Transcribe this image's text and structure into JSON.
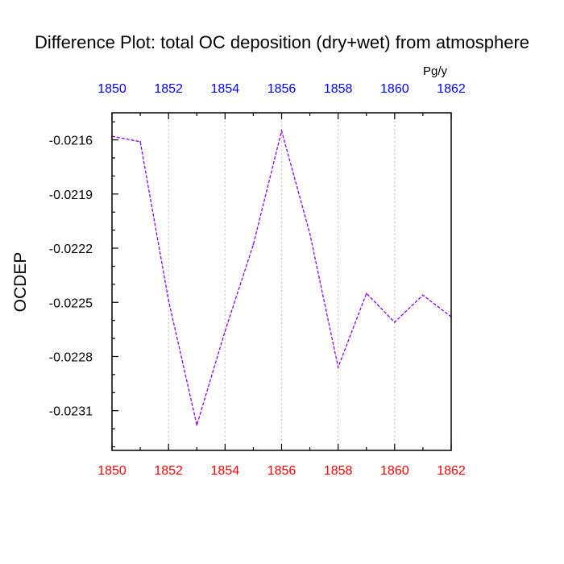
{
  "chart_data": {
    "type": "line",
    "title": "Difference Plot: total OC deposition (dry+wet) from atmosphere",
    "units": "Pg/y",
    "ylabel": "OCDEP",
    "xlabel": "",
    "xlim": [
      1850,
      1862
    ],
    "ylim": [
      -0.02332,
      -0.02145
    ],
    "x_ticks": [
      1850,
      1852,
      1854,
      1856,
      1858,
      1860,
      1862
    ],
    "x_tick_labels": [
      "1850",
      "1852",
      "1854",
      "1856",
      "1858",
      "1860",
      "1862"
    ],
    "y_ticks": [
      -0.0216,
      -0.0219,
      -0.0222,
      -0.0225,
      -0.0228,
      -0.0231
    ],
    "y_tick_labels": [
      "-0.0216",
      "-0.0219",
      "-0.0222",
      "-0.0225",
      "-0.0228",
      "-0.0231"
    ],
    "grid": "vertical dotted at major x ticks",
    "colors": {
      "top_axis_labels": "#0000ff",
      "bottom_axis_labels": "#ff0000",
      "line": "#8b00ff",
      "grid": "#c8c8c8"
    },
    "series": [
      {
        "style": "dashed",
        "x": [
          1850,
          1851,
          1852,
          1853,
          1854,
          1855,
          1856,
          1857,
          1858,
          1859,
          1860,
          1861,
          1862
        ],
        "y": [
          -0.02158,
          -0.02161,
          -0.02249,
          -0.02318,
          -0.02266,
          -0.02218,
          -0.02155,
          -0.02212,
          -0.02286,
          -0.02245,
          -0.02261,
          -0.02246,
          -0.02258
        ]
      }
    ]
  }
}
